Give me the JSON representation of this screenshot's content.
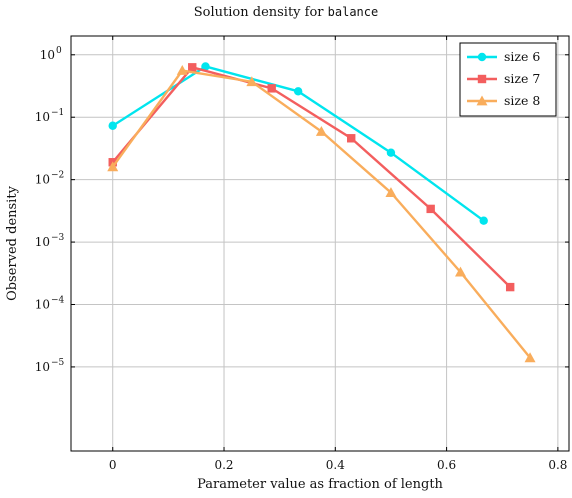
{
  "chart_data": {
    "type": "line",
    "title": "Solution density for",
    "title_code": "balance",
    "xlabel": "Parameter value as fraction of length",
    "ylabel": "Observed density",
    "xlim": [
      -0.075,
      0.82
    ],
    "ylim": [
      4.5e-07,
      2.0
    ],
    "y_scale": "log",
    "x_ticks": [
      0,
      0.2,
      0.4,
      0.6,
      0.8
    ],
    "x_tick_labels": [
      "0",
      "0.2",
      "0.4",
      "0.6",
      "0.8"
    ],
    "y_ticks": [
      1e-05,
      0.0001,
      0.001,
      0.01,
      0.1,
      1
    ],
    "y_tick_base": "10",
    "y_tick_exponents": [
      "−5",
      "−4",
      "−3",
      "−2",
      "−1",
      "0"
    ],
    "grid": true,
    "legend_position": "top-right",
    "series": [
      {
        "name": "size 6",
        "color": "#00e5ee",
        "marker": "circle",
        "x": [
          0,
          0.1667,
          0.3333,
          0.5,
          0.6667
        ],
        "y": [
          0.073,
          0.65,
          0.26,
          0.027,
          0.0022
        ]
      },
      {
        "name": "size 7",
        "color": "#f35e5e",
        "marker": "square",
        "x": [
          0,
          0.1429,
          0.2857,
          0.4286,
          0.5714,
          0.7143
        ],
        "y": [
          0.019,
          0.63,
          0.29,
          0.046,
          0.0034,
          0.00019
        ]
      },
      {
        "name": "size 8",
        "color": "#f9ad5c",
        "marker": "triangle",
        "x": [
          0,
          0.125,
          0.25,
          0.375,
          0.5,
          0.625,
          0.75
        ],
        "y": [
          0.016,
          0.56,
          0.37,
          0.059,
          0.0062,
          0.00033,
          1.4e-05
        ]
      }
    ]
  }
}
